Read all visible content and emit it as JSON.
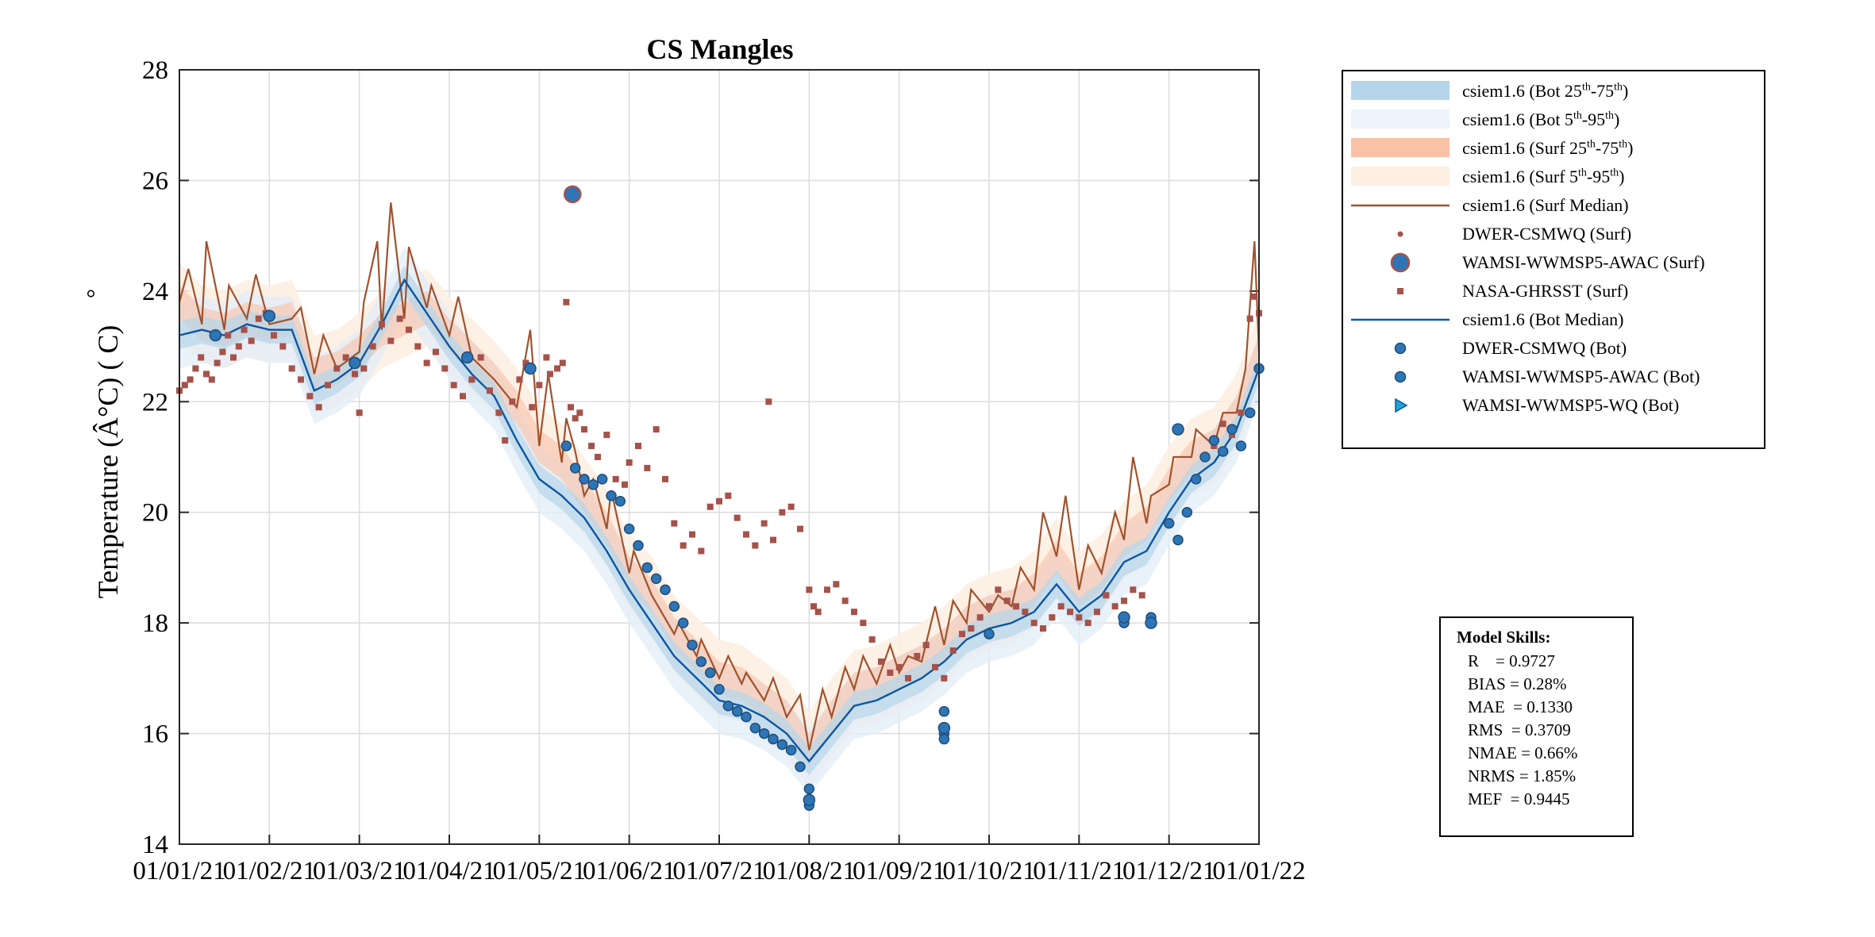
{
  "chart_data": {
    "type": "line",
    "title": "CS Mangles",
    "ylabel": "Temperature (Â°C) ( C)",
    "ylabel_degree_mark": "°",
    "ylim": [
      14,
      28
    ],
    "yticks": [
      "14",
      "16",
      "18",
      "20",
      "22",
      "24",
      "26",
      "28"
    ],
    "xlim": [
      "01/01/21",
      "01/01/22"
    ],
    "xticks": [
      "01/01/21",
      "01/02/21",
      "01/03/21",
      "01/04/21",
      "01/05/21",
      "01/06/21",
      "01/07/21",
      "01/08/21",
      "01/09/21",
      "01/10/21",
      "01/11/21",
      "01/12/21",
      "01/01/22"
    ],
    "grid": true,
    "x_months": [
      0,
      1,
      2,
      3,
      4,
      5,
      6,
      7,
      8,
      9,
      10,
      11,
      12
    ],
    "surf_median": [
      [
        0.0,
        23.8
      ],
      [
        0.25,
        23.4
      ],
      [
        0.5,
        23.3
      ],
      [
        0.75,
        23.5
      ],
      [
        1.0,
        23.4
      ],
      [
        1.25,
        23.5
      ],
      [
        1.5,
        22.5
      ],
      [
        1.75,
        22.6
      ],
      [
        2.0,
        22.9
      ],
      [
        2.25,
        23.3
      ],
      [
        2.5,
        23.5
      ],
      [
        2.75,
        23.7
      ],
      [
        3.0,
        23.2
      ],
      [
        3.25,
        22.8
      ],
      [
        3.5,
        22.4
      ],
      [
        3.75,
        21.9
      ],
      [
        4.0,
        21.2
      ],
      [
        4.25,
        20.9
      ],
      [
        4.5,
        20.3
      ],
      [
        4.75,
        19.7
      ],
      [
        5.0,
        18.9
      ],
      [
        5.25,
        18.5
      ],
      [
        5.5,
        17.8
      ],
      [
        5.75,
        17.4
      ],
      [
        6.0,
        17.0
      ],
      [
        6.25,
        16.9
      ],
      [
        6.5,
        16.6
      ],
      [
        6.75,
        16.3
      ],
      [
        7.0,
        15.7
      ],
      [
        7.25,
        16.3
      ],
      [
        7.5,
        16.8
      ],
      [
        7.75,
        16.9
      ],
      [
        8.0,
        17.1
      ],
      [
        8.25,
        17.3
      ],
      [
        8.5,
        17.6
      ],
      [
        8.75,
        18.0
      ],
      [
        9.0,
        18.2
      ],
      [
        9.25,
        18.3
      ],
      [
        9.5,
        18.6
      ],
      [
        9.75,
        19.2
      ],
      [
        10.0,
        18.6
      ],
      [
        10.25,
        18.9
      ],
      [
        10.5,
        19.5
      ],
      [
        10.75,
        19.8
      ],
      [
        11.0,
        20.5
      ],
      [
        11.25,
        21.0
      ],
      [
        11.5,
        21.2
      ],
      [
        11.75,
        21.8
      ],
      [
        12.0,
        22.9
      ]
    ],
    "bot_median": [
      [
        0.0,
        23.2
      ],
      [
        0.25,
        23.3
      ],
      [
        0.5,
        23.2
      ],
      [
        0.75,
        23.4
      ],
      [
        1.0,
        23.3
      ],
      [
        1.25,
        23.3
      ],
      [
        1.5,
        22.2
      ],
      [
        1.75,
        22.4
      ],
      [
        2.0,
        22.7
      ],
      [
        2.25,
        23.4
      ],
      [
        2.5,
        24.2
      ],
      [
        2.75,
        23.6
      ],
      [
        3.0,
        23.0
      ],
      [
        3.25,
        22.5
      ],
      [
        3.5,
        22.1
      ],
      [
        3.75,
        21.3
      ],
      [
        4.0,
        20.6
      ],
      [
        4.25,
        20.3
      ],
      [
        4.5,
        19.9
      ],
      [
        4.75,
        19.3
      ],
      [
        5.0,
        18.6
      ],
      [
        5.25,
        18.0
      ],
      [
        5.5,
        17.4
      ],
      [
        5.75,
        17.0
      ],
      [
        6.0,
        16.6
      ],
      [
        6.25,
        16.5
      ],
      [
        6.5,
        16.3
      ],
      [
        6.75,
        16.0
      ],
      [
        7.0,
        15.5
      ],
      [
        7.25,
        16.0
      ],
      [
        7.5,
        16.5
      ],
      [
        7.75,
        16.6
      ],
      [
        8.0,
        16.8
      ],
      [
        8.25,
        17.0
      ],
      [
        8.5,
        17.3
      ],
      [
        8.75,
        17.7
      ],
      [
        9.0,
        17.9
      ],
      [
        9.25,
        18.0
      ],
      [
        9.5,
        18.2
      ],
      [
        9.75,
        18.7
      ],
      [
        10.0,
        18.2
      ],
      [
        10.25,
        18.5
      ],
      [
        10.5,
        19.1
      ],
      [
        10.75,
        19.3
      ],
      [
        11.0,
        20.0
      ],
      [
        11.25,
        20.6
      ],
      [
        11.5,
        20.9
      ],
      [
        11.75,
        21.5
      ],
      [
        12.0,
        22.6
      ]
    ],
    "surf_spikes": [
      [
        0.1,
        24.4
      ],
      [
        0.3,
        24.9
      ],
      [
        0.55,
        24.1
      ],
      [
        0.85,
        24.3
      ],
      [
        1.35,
        23.7
      ],
      [
        1.6,
        23.2
      ],
      [
        2.05,
        23.8
      ],
      [
        2.2,
        24.9
      ],
      [
        2.35,
        25.6
      ],
      [
        2.55,
        24.8
      ],
      [
        2.8,
        24.1
      ],
      [
        3.1,
        23.9
      ],
      [
        3.9,
        23.3
      ],
      [
        4.1,
        22.5
      ],
      [
        4.3,
        21.7
      ],
      [
        4.4,
        21.1
      ],
      [
        4.6,
        20.6
      ],
      [
        4.8,
        20.4
      ],
      [
        5.05,
        19.3
      ],
      [
        5.2,
        18.7
      ],
      [
        5.55,
        18.0
      ],
      [
        5.8,
        17.7
      ],
      [
        6.1,
        17.4
      ],
      [
        6.3,
        17.1
      ],
      [
        6.6,
        17.0
      ],
      [
        6.9,
        16.7
      ],
      [
        7.15,
        16.8
      ],
      [
        7.4,
        17.2
      ],
      [
        7.6,
        17.4
      ],
      [
        7.9,
        17.6
      ],
      [
        8.1,
        17.4
      ],
      [
        8.4,
        18.3
      ],
      [
        8.6,
        18.4
      ],
      [
        8.8,
        18.6
      ],
      [
        9.1,
        18.5
      ],
      [
        9.35,
        19.0
      ],
      [
        9.6,
        20.0
      ],
      [
        9.85,
        20.3
      ],
      [
        10.1,
        19.4
      ],
      [
        10.4,
        20.0
      ],
      [
        10.6,
        21.0
      ],
      [
        10.8,
        20.3
      ],
      [
        11.05,
        21.0
      ],
      [
        11.3,
        21.5
      ],
      [
        11.6,
        21.8
      ],
      [
        11.85,
        22.6
      ],
      [
        11.95,
        24.9
      ]
    ],
    "bands": {
      "surf_5_95_offset": 0.7,
      "surf_25_75_offset": 0.3,
      "bot_5_95_offset": 0.6,
      "bot_25_75_offset": 0.25
    },
    "series_nasa_ghrsst_surf": [
      [
        0.0,
        22.2
      ],
      [
        0.06,
        22.3
      ],
      [
        0.12,
        22.4
      ],
      [
        0.18,
        22.6
      ],
      [
        0.24,
        22.8
      ],
      [
        0.3,
        22.5
      ],
      [
        0.36,
        22.4
      ],
      [
        0.42,
        22.7
      ],
      [
        0.48,
        22.9
      ],
      [
        0.54,
        23.2
      ],
      [
        0.6,
        22.8
      ],
      [
        0.66,
        23.0
      ],
      [
        0.72,
        23.3
      ],
      [
        0.8,
        23.1
      ],
      [
        0.88,
        23.5
      ],
      [
        0.96,
        23.6
      ],
      [
        1.05,
        23.2
      ],
      [
        1.15,
        23.0
      ],
      [
        1.25,
        22.6
      ],
      [
        1.35,
        22.4
      ],
      [
        1.45,
        22.1
      ],
      [
        1.55,
        21.9
      ],
      [
        1.65,
        22.3
      ],
      [
        1.75,
        22.6
      ],
      [
        1.85,
        22.8
      ],
      [
        1.95,
        22.5
      ],
      [
        2.0,
        21.8
      ],
      [
        2.05,
        22.6
      ],
      [
        2.15,
        23.0
      ],
      [
        2.25,
        23.4
      ],
      [
        2.35,
        23.1
      ],
      [
        2.45,
        23.5
      ],
      [
        2.55,
        23.3
      ],
      [
        2.65,
        23.0
      ],
      [
        2.75,
        22.7
      ],
      [
        2.85,
        22.9
      ],
      [
        2.95,
        22.6
      ],
      [
        3.05,
        22.3
      ],
      [
        3.15,
        22.1
      ],
      [
        3.25,
        22.4
      ],
      [
        3.35,
        22.8
      ],
      [
        3.45,
        22.2
      ],
      [
        3.55,
        21.8
      ],
      [
        3.62,
        21.3
      ],
      [
        3.7,
        22.0
      ],
      [
        3.78,
        22.4
      ],
      [
        3.85,
        22.7
      ],
      [
        3.92,
        21.9
      ],
      [
        4.0,
        22.3
      ],
      [
        4.08,
        22.8
      ],
      [
        4.12,
        22.5
      ],
      [
        4.2,
        22.6
      ],
      [
        4.26,
        22.7
      ],
      [
        4.3,
        23.8
      ],
      [
        4.35,
        21.9
      ],
      [
        4.4,
        21.7
      ],
      [
        4.45,
        21.8
      ],
      [
        4.5,
        21.5
      ],
      [
        4.58,
        21.2
      ],
      [
        4.65,
        21.0
      ],
      [
        4.75,
        21.4
      ],
      [
        4.85,
        20.6
      ],
      [
        4.95,
        20.5
      ],
      [
        5.0,
        20.9
      ],
      [
        5.1,
        21.2
      ],
      [
        5.2,
        20.8
      ],
      [
        5.3,
        21.5
      ],
      [
        5.4,
        20.6
      ],
      [
        5.5,
        19.8
      ],
      [
        5.6,
        19.4
      ],
      [
        5.7,
        19.6
      ],
      [
        5.8,
        19.3
      ],
      [
        5.9,
        20.1
      ],
      [
        6.0,
        20.2
      ],
      [
        6.1,
        20.3
      ],
      [
        6.2,
        19.9
      ],
      [
        6.3,
        19.6
      ],
      [
        6.4,
        19.4
      ],
      [
        6.5,
        19.8
      ],
      [
        6.55,
        22.0
      ],
      [
        6.6,
        19.5
      ],
      [
        6.7,
        20.0
      ],
      [
        6.8,
        20.1
      ],
      [
        6.9,
        19.7
      ],
      [
        7.0,
        18.6
      ],
      [
        7.05,
        18.3
      ],
      [
        7.1,
        18.2
      ],
      [
        7.2,
        18.6
      ],
      [
        7.3,
        18.7
      ],
      [
        7.4,
        18.4
      ],
      [
        7.5,
        18.2
      ],
      [
        7.6,
        18.0
      ],
      [
        7.7,
        17.7
      ],
      [
        7.8,
        17.3
      ],
      [
        7.9,
        17.1
      ],
      [
        8.0,
        17.2
      ],
      [
        8.1,
        17.0
      ],
      [
        8.2,
        17.4
      ],
      [
        8.3,
        17.6
      ],
      [
        8.4,
        17.2
      ],
      [
        8.5,
        17.0
      ],
      [
        8.6,
        17.5
      ],
      [
        8.7,
        17.8
      ],
      [
        8.8,
        17.9
      ],
      [
        8.9,
        18.1
      ],
      [
        9.0,
        18.3
      ],
      [
        9.1,
        18.6
      ],
      [
        9.2,
        18.4
      ],
      [
        9.3,
        18.3
      ],
      [
        9.4,
        18.2
      ],
      [
        9.5,
        18.0
      ],
      [
        9.6,
        17.9
      ],
      [
        9.7,
        18.1
      ],
      [
        9.8,
        18.3
      ],
      [
        9.9,
        18.2
      ],
      [
        10.0,
        18.1
      ],
      [
        10.1,
        18.0
      ],
      [
        10.2,
        18.2
      ],
      [
        10.3,
        18.5
      ],
      [
        10.4,
        18.3
      ],
      [
        10.5,
        18.4
      ],
      [
        10.6,
        18.6
      ],
      [
        10.7,
        18.5
      ],
      [
        11.5,
        21.2
      ],
      [
        11.6,
        21.6
      ],
      [
        11.7,
        21.4
      ],
      [
        11.8,
        21.8
      ],
      [
        11.9,
        23.5
      ],
      [
        11.95,
        23.9
      ],
      [
        12.0,
        23.6
      ]
    ],
    "series_wamsi_awac_surf": [
      [
        4.37,
        25.75
      ]
    ],
    "series_dwer_csmwq_bot": [
      [
        0.4,
        23.2
      ],
      [
        1.0,
        23.55
      ],
      [
        1.95,
        22.7
      ],
      [
        3.2,
        22.8
      ],
      [
        3.9,
        22.6
      ],
      [
        7.0,
        14.8
      ],
      [
        8.5,
        16.1
      ],
      [
        10.5,
        18.1
      ],
      [
        10.8,
        18.0
      ],
      [
        11.1,
        21.5
      ]
    ],
    "series_wamsi_awac_bot": [
      [
        4.3,
        21.2
      ],
      [
        4.4,
        20.8
      ],
      [
        4.5,
        20.6
      ],
      [
        4.6,
        20.5
      ],
      [
        4.7,
        20.6
      ],
      [
        4.8,
        20.3
      ],
      [
        4.9,
        20.2
      ],
      [
        5.0,
        19.7
      ],
      [
        5.1,
        19.4
      ],
      [
        5.2,
        19.0
      ],
      [
        5.3,
        18.8
      ],
      [
        5.4,
        18.6
      ],
      [
        5.5,
        18.3
      ],
      [
        5.6,
        18.0
      ],
      [
        5.7,
        17.6
      ],
      [
        5.8,
        17.3
      ],
      [
        5.9,
        17.1
      ],
      [
        6.0,
        16.8
      ],
      [
        6.1,
        16.5
      ],
      [
        6.2,
        16.4
      ],
      [
        6.3,
        16.3
      ],
      [
        6.4,
        16.1
      ],
      [
        6.5,
        16.0
      ],
      [
        6.6,
        15.9
      ],
      [
        6.7,
        15.8
      ],
      [
        6.8,
        15.7
      ],
      [
        6.9,
        15.4
      ],
      [
        7.0,
        15.0
      ],
      [
        7.0,
        14.7
      ],
      [
        8.5,
        16.4
      ],
      [
        8.5,
        16.0
      ],
      [
        8.5,
        15.9
      ],
      [
        9.0,
        17.8
      ],
      [
        10.5,
        18.0
      ],
      [
        10.8,
        18.1
      ],
      [
        11.0,
        19.8
      ],
      [
        11.1,
        19.5
      ],
      [
        11.2,
        20.0
      ],
      [
        11.3,
        20.6
      ],
      [
        11.4,
        21.0
      ],
      [
        11.5,
        21.3
      ],
      [
        11.6,
        21.1
      ],
      [
        11.7,
        21.5
      ],
      [
        11.8,
        21.2
      ],
      [
        11.9,
        21.8
      ],
      [
        12.0,
        22.6
      ]
    ],
    "legend": [
      {
        "type": "band",
        "color": "#b5d5ea",
        "label": "csiem1.6 (Bot 25",
        "sup": "th",
        "mid": "-75",
        "sup2": "th",
        "tail": ")"
      },
      {
        "type": "band",
        "color": "#edf4fb",
        "label": "csiem1.6 (Bot 5",
        "sup": "th",
        "mid": "-95",
        "sup2": "th",
        "tail": ")"
      },
      {
        "type": "band",
        "color": "#f9c2a6",
        "label": "csiem1.6 (Surf 25",
        "sup": "th",
        "mid": "-75",
        "sup2": "th",
        "tail": ")"
      },
      {
        "type": "band",
        "color": "#fdeee2",
        "label": "csiem1.6 (Surf 5",
        "sup": "th",
        "mid": "-95",
        "sup2": "th",
        "tail": ")"
      },
      {
        "type": "line",
        "color": "#a0522d",
        "label": "csiem1.6 (Surf Median)"
      },
      {
        "type": "smalldot",
        "color": "#a5524a",
        "label": "DWER-CSMWQ (Surf)"
      },
      {
        "type": "bigcircle",
        "color": "#2e75b6",
        "label": "WAMSI-WWMSP5-AWAC (Surf)"
      },
      {
        "type": "square",
        "color": "#a5524a",
        "label": "NASA-GHRSST (Surf)"
      },
      {
        "type": "line",
        "color": "#0c56a0",
        "label": "csiem1.6 (Bot Median)"
      },
      {
        "type": "circle",
        "color": "#2e75b6",
        "label": "DWER-CSMWQ (Bot)"
      },
      {
        "type": "circle",
        "color": "#2e75b6",
        "label": "WAMSI-WWMSP5-AWAC (Bot)"
      },
      {
        "type": "triangle",
        "color": "#1fa3d6",
        "label": "WAMSI-WWMSP5-WQ (Bot)"
      }
    ],
    "legend_placement": "right-top",
    "colors": {
      "surf": "#a0522d",
      "bot": "#0c56a0",
      "obs_surf": "#a5524a",
      "obs_bot": "#2e75b6"
    }
  },
  "skills": {
    "title": "Model Skills:",
    "lines": [
      "R    = 0.9727",
      "BIAS = 0.28%",
      "MAE  = 0.1330",
      "RMS  = 0.3709",
      "NMAE = 0.66%",
      "NRMS = 1.85%",
      "MEF  = 0.9445"
    ]
  }
}
